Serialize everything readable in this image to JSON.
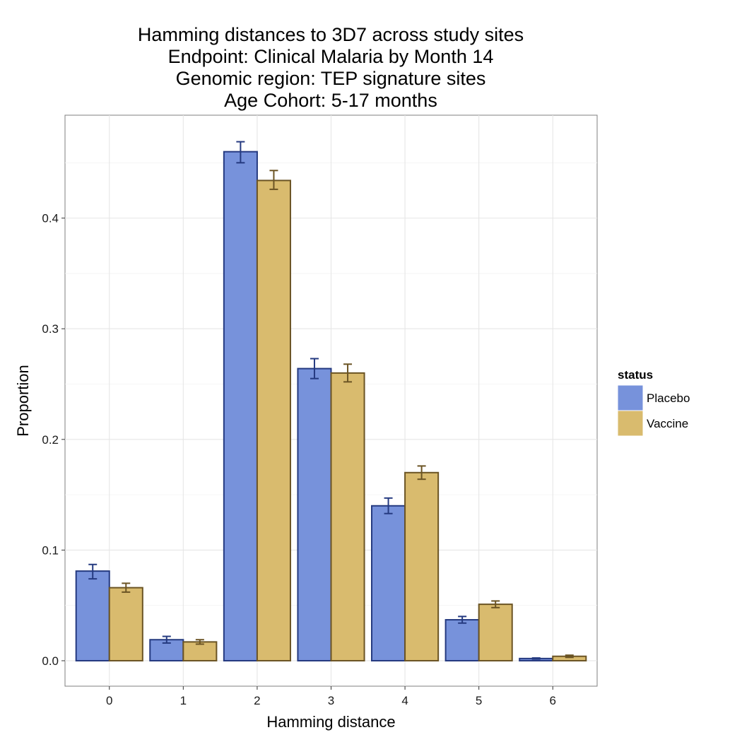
{
  "chart_data": {
    "type": "bar",
    "title_lines": [
      "Hamming distances to 3D7 across study sites",
      "Endpoint: Clinical Malaria by Month 14",
      "Genomic region: TEP signature sites",
      "Age Cohort: 5-17 months"
    ],
    "xlabel": "Hamming distance",
    "ylabel": "Proportion",
    "categories": [
      "0",
      "1",
      "2",
      "3",
      "4",
      "5",
      "6"
    ],
    "yticks": [
      "0.0",
      "0.1",
      "0.2",
      "0.3",
      "0.4"
    ],
    "ylim": [
      -0.023,
      0.493
    ],
    "grid": true,
    "legend": {
      "title": "status",
      "position": "right"
    },
    "series": [
      {
        "name": "Placebo",
        "fill": "#7792db",
        "stroke": "#253a80",
        "values": [
          0.081,
          0.019,
          0.46,
          0.264,
          0.14,
          0.037,
          0.002
        ],
        "err_low": [
          0.074,
          0.016,
          0.45,
          0.255,
          0.133,
          0.034,
          0.0015
        ],
        "err_high": [
          0.087,
          0.022,
          0.469,
          0.273,
          0.147,
          0.04,
          0.0025
        ]
      },
      {
        "name": "Vaccine",
        "fill": "#d9bb6e",
        "stroke": "#6b5424",
        "values": [
          0.066,
          0.017,
          0.434,
          0.26,
          0.17,
          0.051,
          0.004
        ],
        "err_low": [
          0.062,
          0.015,
          0.426,
          0.252,
          0.164,
          0.048,
          0.003
        ],
        "err_high": [
          0.07,
          0.019,
          0.443,
          0.268,
          0.176,
          0.054,
          0.005
        ]
      }
    ]
  }
}
